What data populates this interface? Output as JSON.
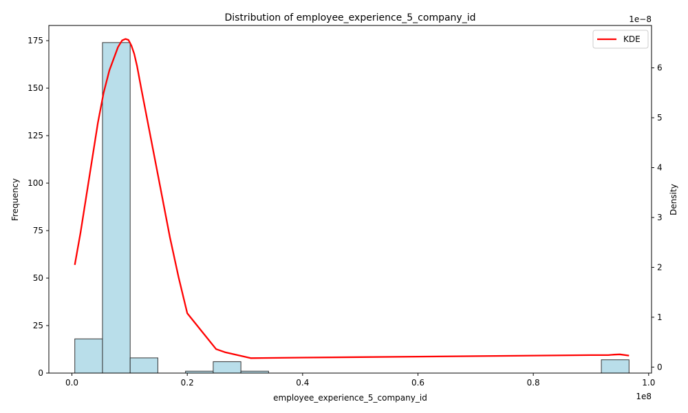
{
  "chart_data": {
    "type": "bar",
    "title": "Distribution of employee_experience_5_company_id",
    "xlabel": "employee_experience_5_company_id",
    "ylabel": "Frequency",
    "y2label": "Density",
    "x_offset_label": "1e8",
    "y2_offset_label": "1e−8",
    "xlim": [
      -0.04,
      1.005
    ],
    "ylim": [
      0,
      183
    ],
    "y2lim": [
      -0.12,
      6.85
    ],
    "x_ticks": [
      "0.0",
      "0.2",
      "0.4",
      "0.6",
      "0.8",
      "1.0"
    ],
    "y_ticks": [
      "0",
      "25",
      "50",
      "75",
      "100",
      "125",
      "150",
      "175"
    ],
    "y2_ticks": [
      "0",
      "1",
      "2",
      "3",
      "4",
      "5",
      "6"
    ],
    "bins": [
      {
        "x0": 0.005,
        "x1": 0.053,
        "count": 18
      },
      {
        "x0": 0.053,
        "x1": 0.101,
        "count": 174
      },
      {
        "x0": 0.101,
        "x1": 0.149,
        "count": 8
      },
      {
        "x0": 0.149,
        "x1": 0.197,
        "count": 0
      },
      {
        "x0": 0.197,
        "x1": 0.245,
        "count": 1
      },
      {
        "x0": 0.245,
        "x1": 0.293,
        "count": 6
      },
      {
        "x0": 0.293,
        "x1": 0.341,
        "count": 1
      },
      {
        "x0": 0.918,
        "x1": 0.966,
        "count": 7
      }
    ],
    "series": [
      {
        "name": "KDE",
        "color": "#ff0000",
        "x": [
          0.005,
          0.015,
          0.03,
          0.045,
          0.055,
          0.065,
          0.08,
          0.087,
          0.093,
          0.098,
          0.103,
          0.108,
          0.113,
          0.12,
          0.135,
          0.15,
          0.17,
          0.185,
          0.2,
          0.225,
          0.25,
          0.265,
          0.28,
          0.31,
          0.4,
          0.5,
          0.6,
          0.7,
          0.8,
          0.9,
          0.93,
          0.94,
          0.95,
          0.966
        ],
        "y": [
          2.05,
          2.7,
          3.8,
          4.9,
          5.5,
          5.95,
          6.42,
          6.55,
          6.58,
          6.56,
          6.45,
          6.28,
          6.03,
          5.6,
          4.7,
          3.8,
          2.6,
          1.8,
          1.08,
          0.72,
          0.36,
          0.3,
          0.26,
          0.18,
          0.19,
          0.2,
          0.21,
          0.22,
          0.23,
          0.24,
          0.24,
          0.25,
          0.255,
          0.23
        ]
      }
    ],
    "legend": {
      "position": "top-right",
      "label": "KDE"
    },
    "bar_color": "#add8e6",
    "bar_edge_color": "#333333",
    "grid": false
  }
}
